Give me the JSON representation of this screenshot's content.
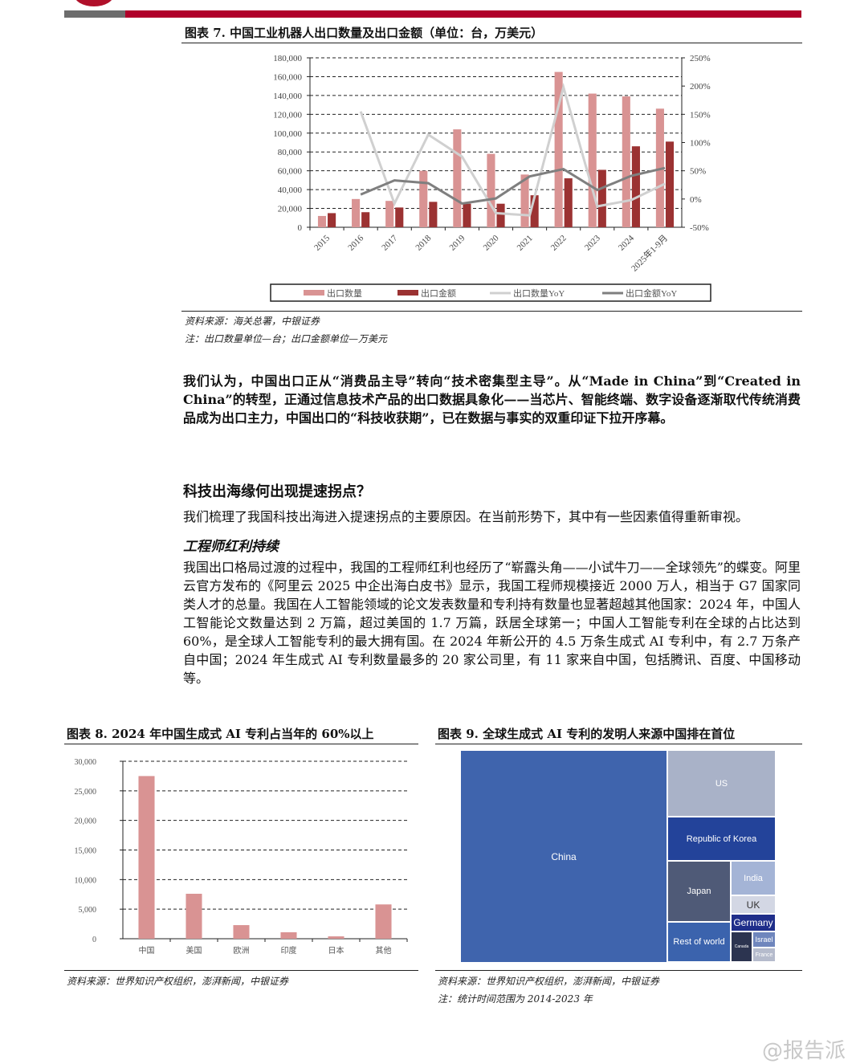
{
  "header": {
    "accent": "#b0002a"
  },
  "fig7": {
    "title": "图表 7. 中国工业机器人出口数量及出口金额（单位：台，万美元）",
    "source": "资料来源：海关总署，中银证券",
    "note": "注：出口数量单位—台；出口金额单位—万美元"
  },
  "para1": "我们认为，中国出口正从“消费品主导”转向“技术密集型主导”。从“Made in China”到“Created in China”的转型，正通过信息技术产品的出口数据具象化——当芯片、智能终端、数字设备逐渐取代传统消费品成为出口主力，中国出口的“科技收获期”，已在数据与事实的双重印证下拉开序幕。",
  "section_title": "科技出海缘何出现提速拐点？",
  "para2": "我们梳理了我国科技出海进入提速拐点的主要原因。在当前形势下，其中有一些因素值得重新审视。",
  "subsection_title": "工程师红利持续",
  "para3": "我国出口格局过渡的过程中，我国的工程师红利也经历了“崭露头角——小试牛刀——全球领先”的蝶变。阿里云官方发布的《阿里云 2025 中企出海白皮书》显示，我国工程师规模接近 2000 万人，相当于 G7 国家同类人才的总量。我国在人工智能领域的论文发表数量和专利持有数量也显著超越其他国家：2024 年，中国人工智能论文数量达到 2 万篇，超过美国的 1.7 万篇，跃居全球第一；中国人工智能专利在全球的占比达到 60%，是全球人工智能专利的最大拥有国。在 2024 年新公开的 4.5 万条生成式 AI 专利中，有 2.7 万条产自中国；2024 年生成式 AI 专利数量最多的 20 家公司里，有 11 家来自中国，包括腾讯、百度、中国移动等。",
  "fig8": {
    "title": "图表 8. 2024 年中国生成式 AI 专利占当年的 60%以上",
    "source": "资料来源：世界知识产权组织，澎湃新闻，中银证券"
  },
  "fig9": {
    "title": "图表 9. 全球生成式 AI 专利的发明人来源中国排在首位",
    "source": "资料来源：世界知识产权组织，澎湃新闻，中银证券",
    "note": "注：统计时间范围为 2014-2023 年"
  },
  "watermark": "@报告派",
  "chart_data": [
    {
      "type": "bar+line",
      "categories": [
        "2015",
        "2016",
        "2017",
        "2018",
        "2019",
        "2020",
        "2021",
        "2022",
        "2023",
        "2024",
        "2025年1-9月"
      ],
      "ylim": [
        0,
        180000
      ],
      "yticks": [
        "0",
        "20,000",
        "40,000",
        "60,000",
        "80,000",
        "100,000",
        "120,000",
        "140,000",
        "160,000",
        "180,000"
      ],
      "y2lim": [
        -50,
        250
      ],
      "y2ticks": [
        "-50%",
        "0%",
        "50%",
        "100%",
        "150%",
        "200%",
        "250%"
      ],
      "grid": true,
      "legend": "bottom",
      "series": [
        {
          "name": "出口数量",
          "kind": "bar",
          "axis": "left",
          "color": "#d99393",
          "values": [
            12000,
            30000,
            28000,
            60000,
            104000,
            78000,
            56000,
            165000,
            142000,
            139000,
            126000
          ]
        },
        {
          "name": "出口金额",
          "kind": "bar",
          "axis": "left",
          "color": "#9b3232",
          "values": [
            15000,
            16000,
            21000,
            27000,
            25000,
            25000,
            34000,
            52000,
            61000,
            86000,
            91000
          ]
        },
        {
          "name": "出口数量YoY",
          "kind": "line",
          "axis": "right",
          "color": "#d0d0d0",
          "values": [
            null,
            155,
            -8,
            114,
            75,
            -25,
            -29,
            198,
            -13,
            -2,
            27
          ]
        },
        {
          "name": "出口金额YoY",
          "kind": "line",
          "axis": "right",
          "color": "#7f7f7f",
          "values": [
            null,
            8,
            33,
            28,
            -8,
            1,
            40,
            53,
            16,
            41,
            55
          ]
        }
      ]
    },
    {
      "type": "bar",
      "categories": [
        "中国",
        "美国",
        "欧洲",
        "印度",
        "日本",
        "其他"
      ],
      "values": [
        27500,
        7600,
        2300,
        1100,
        400,
        5800
      ],
      "ylim": [
        0,
        30000
      ],
      "yticks": [
        "0",
        "5,000",
        "10,000",
        "15,000",
        "20,000",
        "25,000",
        "30,000"
      ],
      "grid": true,
      "color": "#d99393"
    },
    {
      "type": "treemap",
      "cells": [
        {
          "label": "China",
          "color": "#3f64ad"
        },
        {
          "label": "US",
          "color": "#a9b2c8"
        },
        {
          "label": "Republic of Korea",
          "color": "#23439a"
        },
        {
          "label": "Japan",
          "color": "#4f5a77"
        },
        {
          "label": "Rest of world",
          "color": "#3b63ad"
        },
        {
          "label": "India",
          "color": "#a4b4d6"
        },
        {
          "label": "UK",
          "color": "#d3d7e4"
        },
        {
          "label": "Germany",
          "color": "#1f2e8a"
        },
        {
          "label": "Canada",
          "color": "#2c3450"
        },
        {
          "label": "Israel",
          "color": "#6f86bd"
        },
        {
          "label": "France",
          "color": "#b5bbcc"
        }
      ]
    }
  ]
}
